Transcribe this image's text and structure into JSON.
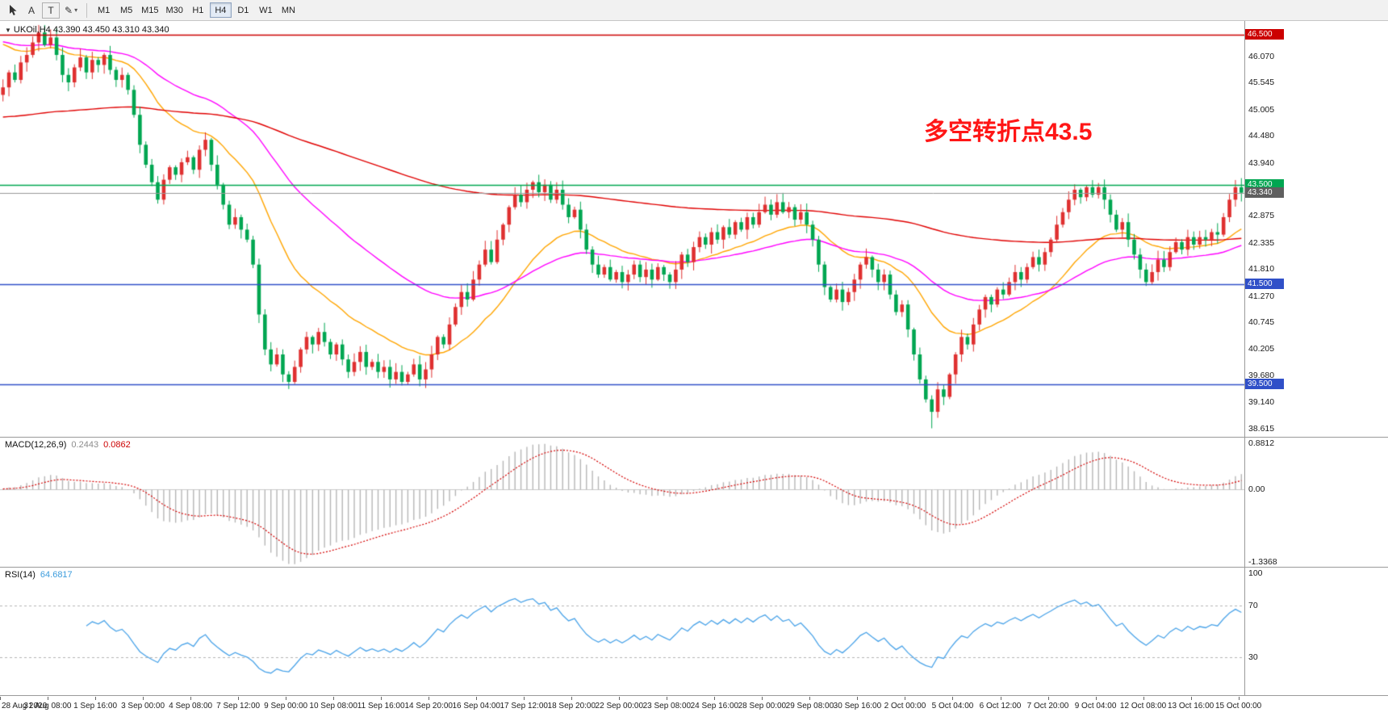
{
  "toolbar": {
    "tools": [
      {
        "name": "cursor-tool",
        "label": ""
      },
      {
        "name": "text-tool",
        "label": "A"
      },
      {
        "name": "template-tool",
        "label": "T"
      },
      {
        "name": "draw-tools",
        "label": "✎",
        "caret": "▾"
      }
    ],
    "timeframes": [
      "M1",
      "M5",
      "M15",
      "M30",
      "H1",
      "H4",
      "D1",
      "W1",
      "MN"
    ],
    "active_timeframe": "H4"
  },
  "colors": {
    "candle_up": "#df3030",
    "candle_down": "#00a651",
    "macd_hist": "#b6b6b6",
    "macd_signal": "#d40000",
    "rsi_line": "#4aa3e8",
    "annotation": "#ff1616",
    "current_price_line": "#999999",
    "current_price_badge": "#5f5f5f"
  },
  "chart_data": {
    "type": "candlestick",
    "symbol": "UKOil",
    "timeframe": "H4",
    "symbol_marker": "▼",
    "symbol_line": "UKOil,H4  43.390 43.450 43.310 43.340",
    "annotation": "多空转折点43.5",
    "ohlc_current": {
      "open": 43.39,
      "high": 43.45,
      "low": 43.31,
      "close": 43.34
    },
    "price_axis": {
      "ticks": [
        46.07,
        45.545,
        45.005,
        44.48,
        43.94,
        42.875,
        42.335,
        41.81,
        41.27,
        40.745,
        40.205,
        39.68,
        39.14,
        38.615
      ],
      "range": [
        38.45,
        46.78
      ]
    },
    "hlines": [
      {
        "label": "46.500",
        "value": 46.5,
        "color": "#cc0000"
      },
      {
        "label": "43.500",
        "value": 43.5,
        "color": "#00a651"
      },
      {
        "label": "41.500",
        "value": 41.5,
        "color": "#3050c8"
      },
      {
        "label": "39.500",
        "value": 39.5,
        "color": "#3050c8"
      }
    ],
    "current_price": {
      "label": "43.340",
      "value": 43.34
    },
    "x_labels": [
      "28 Aug 2020",
      "31 Aug 08:00",
      "1 Sep 16:00",
      "3 Sep 00:00",
      "4 Sep 08:00",
      "7 Sep 12:00",
      "9 Sep 00:00",
      "10 Sep 08:00",
      "11 Sep 16:00",
      "14 Sep 20:00",
      "16 Sep 04:00",
      "17 Sep 12:00",
      "18 Sep 20:00",
      "22 Sep 00:00",
      "23 Sep 08:00",
      "24 Sep 16:00",
      "28 Sep 00:00",
      "29 Sep 08:00",
      "30 Sep 16:00",
      "2 Oct 00:00",
      "5 Oct 04:00",
      "6 Oct 12:00",
      "7 Oct 20:00",
      "9 Oct 04:00",
      "12 Oct 08:00",
      "13 Oct 16:00",
      "15 Oct 00:00"
    ],
    "candles_per_label": 8,
    "first_open": 45.3,
    "spike_low": {
      "index": 156,
      "value": 38.62
    },
    "closes": [
      45.45,
      45.75,
      45.6,
      45.95,
      46.1,
      46.35,
      46.55,
      46.3,
      46.45,
      46.1,
      45.7,
      45.55,
      45.85,
      46.05,
      45.75,
      46.0,
      45.9,
      46.1,
      45.8,
      45.6,
      45.7,
      45.4,
      44.9,
      44.3,
      43.9,
      43.55,
      43.2,
      43.6,
      43.85,
      43.7,
      43.95,
      44.05,
      43.8,
      44.2,
      44.4,
      43.9,
      43.5,
      43.1,
      42.7,
      42.85,
      42.6,
      42.4,
      41.9,
      40.9,
      40.2,
      39.9,
      40.1,
      39.7,
      39.55,
      39.85,
      40.2,
      40.45,
      40.3,
      40.55,
      40.35,
      40.1,
      40.3,
      40.0,
      39.75,
      39.95,
      40.15,
      39.85,
      39.95,
      39.75,
      39.85,
      39.6,
      39.75,
      39.55,
      39.7,
      39.9,
      39.6,
      39.8,
      40.1,
      40.45,
      40.3,
      40.7,
      41.05,
      41.35,
      41.2,
      41.6,
      41.9,
      42.2,
      41.95,
      42.4,
      42.7,
      43.05,
      43.3,
      43.15,
      43.4,
      43.55,
      43.35,
      43.5,
      43.2,
      43.4,
      43.1,
      42.85,
      43.0,
      42.6,
      42.2,
      41.9,
      41.7,
      41.85,
      41.6,
      41.75,
      41.55,
      41.7,
      41.9,
      41.65,
      41.8,
      41.6,
      41.85,
      41.7,
      41.55,
      41.8,
      42.1,
      41.95,
      42.25,
      42.45,
      42.3,
      42.55,
      42.4,
      42.65,
      42.5,
      42.75,
      42.6,
      42.85,
      42.7,
      42.95,
      43.1,
      42.9,
      43.15,
      42.95,
      43.05,
      42.8,
      42.95,
      42.7,
      42.4,
      41.9,
      41.45,
      41.2,
      41.4,
      41.15,
      41.35,
      41.6,
      41.9,
      42.05,
      41.8,
      41.55,
      41.7,
      41.3,
      40.95,
      41.1,
      40.6,
      40.1,
      39.6,
      39.2,
      38.95,
      39.4,
      39.25,
      39.7,
      40.1,
      40.45,
      40.3,
      40.7,
      41.0,
      41.25,
      41.1,
      41.4,
      41.3,
      41.55,
      41.75,
      41.6,
      41.85,
      42.05,
      41.9,
      42.15,
      42.4,
      42.7,
      42.95,
      43.2,
      43.4,
      43.25,
      43.45,
      43.3,
      43.45,
      43.2,
      42.9,
      42.6,
      42.75,
      42.4,
      42.1,
      41.8,
      41.55,
      41.75,
      42.0,
      41.85,
      42.15,
      42.35,
      42.2,
      42.45,
      42.3,
      42.45,
      42.4,
      42.55,
      42.5,
      42.85,
      43.2,
      43.45,
      43.34
    ],
    "moving_averages": [
      {
        "name": "fast",
        "period": 21,
        "seed": 46.4,
        "color": "#ffa500"
      },
      {
        "name": "mid",
        "period": 50,
        "seed": 46.4,
        "color": "#ff00ff"
      },
      {
        "name": "slow",
        "period": 200,
        "seed": 44.85,
        "color": "#e00000"
      }
    ],
    "macd": {
      "label": "MACD(12,26,9)",
      "value1": "0.2443",
      "value2": "0.0862",
      "fast": 12,
      "slow": 26,
      "signal": 9,
      "axis": [
        {
          "label": "0.8812",
          "value": 0.8812
        },
        {
          "label": "0.00",
          "value": 0
        },
        {
          "label": "-1.3368",
          "value": -1.3368
        }
      ],
      "range": [
        -1.3368,
        0.8812
      ]
    },
    "rsi": {
      "label": "RSI(14)",
      "value": "64.6817",
      "period": 14,
      "axis": [
        {
          "label": "100",
          "value": 100
        },
        {
          "label": "70",
          "value": 70
        },
        {
          "label": "30",
          "value": 30
        }
      ],
      "levels": [
        70,
        30
      ],
      "range": [
        0,
        100
      ]
    }
  }
}
